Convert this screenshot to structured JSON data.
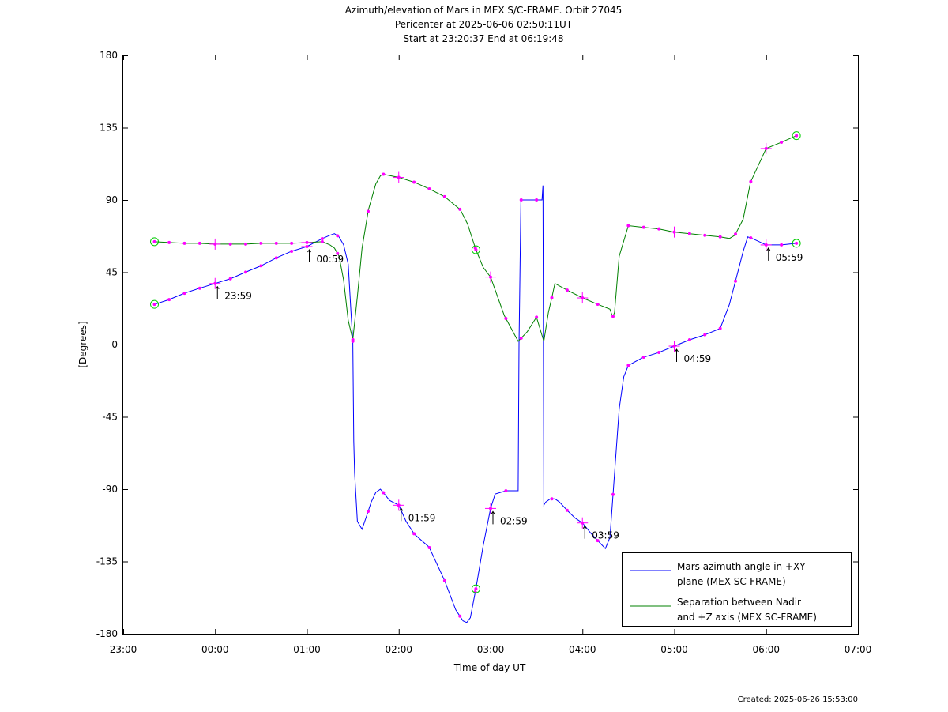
{
  "chart_data": {
    "type": "line",
    "title_lines": [
      "Azimuth/elevation of Mars in MEX S/C-FRAME.  Orbit 27045",
      "Pericenter at 2025-06-06 02:50:11UT",
      "Start at 23:20:37 End at 06:19:48"
    ],
    "xlabel": "Time of day UT",
    "ylabel": "[Degrees]",
    "xlim": [
      -1,
      7
    ],
    "ylim": [
      -180,
      180
    ],
    "xticks": [
      -1,
      0,
      1,
      2,
      3,
      4,
      5,
      6,
      7
    ],
    "xtick_labels": [
      "23:00",
      "00:00",
      "01:00",
      "02:00",
      "03:00",
      "04:00",
      "05:00",
      "06:00",
      "07:00"
    ],
    "yticks": [
      -180,
      -135,
      -90,
      -45,
      0,
      45,
      90,
      135,
      180
    ],
    "ytick_labels": [
      "-180",
      "-135",
      "-90",
      "-45",
      "0",
      "45",
      "90",
      "135",
      "180"
    ],
    "legend_position": "bottom-right",
    "marker_color": "#ff00ff",
    "start_end_marker_color": "#00cc00",
    "series": [
      {
        "name": "Mars azimuth angle in +XY plane (MEX SC-FRAME)",
        "legend_lines": [
          "Mars azimuth angle in +XY",
          "plane (MEX SC-FRAME)"
        ],
        "color": "#0000ff",
        "x": [
          -0.66,
          -0.5,
          -0.33,
          -0.17,
          0.0,
          0.17,
          0.33,
          0.5,
          0.67,
          0.83,
          1.0,
          1.1,
          1.17,
          1.25,
          1.3,
          1.35,
          1.4,
          1.45,
          1.48,
          1.5,
          1.51,
          1.52,
          1.55,
          1.6,
          1.66,
          1.7,
          1.75,
          1.8,
          1.83,
          1.9,
          2.0,
          2.08,
          2.17,
          2.33,
          2.5,
          2.62,
          2.7,
          2.74,
          2.78,
          2.84,
          2.92,
          3.0,
          3.05,
          3.17,
          3.3,
          3.31,
          3.33,
          3.5,
          3.56,
          3.57,
          3.58,
          3.6,
          3.65,
          3.7,
          3.75,
          3.83,
          3.92,
          4.0,
          4.1,
          4.25,
          4.3,
          4.4,
          4.45,
          4.5,
          4.66,
          4.83,
          5.0,
          5.17,
          5.33,
          5.5,
          5.6,
          5.66,
          5.75,
          5.8,
          5.85,
          6.0,
          6.17,
          6.33
        ],
        "y": [
          25.0,
          28.0,
          32.0,
          35.0,
          38.0,
          41.0,
          45.0,
          49.0,
          54.0,
          58.0,
          61.0,
          64.0,
          66.0,
          68.0,
          69.0,
          67.0,
          62.0,
          50.0,
          20.0,
          2.0,
          -60.0,
          -80.0,
          -110.0,
          -115.0,
          -105.0,
          -98.0,
          -92.0,
          -90.0,
          -92.0,
          -97.0,
          -100.0,
          -110.0,
          -118.0,
          -126.0,
          -147.0,
          -165.0,
          -172.0,
          -173.0,
          -170.0,
          -152.0,
          -125.0,
          -102.0,
          -93.0,
          -91.0,
          -91.0,
          0.0,
          90.0,
          90.0,
          90.0,
          99.0,
          -100.0,
          -98.0,
          -96.0,
          -96.0,
          -98.0,
          -103.0,
          -108.0,
          -111.0,
          -118.0,
          -127.0,
          -120.0,
          -40.0,
          -20.0,
          -13.0,
          -8.0,
          -5.0,
          -1.0,
          3.0,
          6.0,
          10.0,
          25.0,
          38.0,
          58.0,
          67.0,
          66.0,
          62.0,
          62.0,
          63.0
        ]
      },
      {
        "name": "Separation between Nadir and +Z axis (MEX SC-FRAME)",
        "legend_lines": [
          "Separation between Nadir",
          "and +Z axis (MEX SC-FRAME)"
        ],
        "color": "#008000",
        "x": [
          -0.66,
          -0.5,
          -0.33,
          -0.17,
          0.0,
          0.17,
          0.33,
          0.5,
          0.67,
          0.83,
          1.0,
          1.17,
          1.25,
          1.3,
          1.35,
          1.4,
          1.45,
          1.5,
          1.55,
          1.6,
          1.67,
          1.75,
          1.8,
          1.83,
          2.0,
          2.17,
          2.33,
          2.5,
          2.67,
          2.75,
          2.84,
          2.92,
          3.0,
          3.15,
          3.3,
          3.4,
          3.5,
          3.58,
          3.63,
          3.67,
          3.7,
          3.83,
          4.0,
          4.17,
          4.3,
          4.33,
          4.35,
          4.4,
          4.5,
          4.66,
          4.83,
          5.0,
          5.17,
          5.33,
          5.5,
          5.6,
          5.66,
          5.75,
          5.83,
          6.0,
          6.17,
          6.33
        ],
        "y": [
          64.0,
          63.5,
          63.0,
          63.0,
          62.5,
          62.5,
          62.5,
          63.0,
          63.0,
          63.0,
          63.5,
          64.0,
          62.0,
          60.0,
          55.0,
          40.0,
          15.0,
          3.0,
          30.0,
          60.0,
          84.0,
          100.0,
          105.0,
          106.0,
          104.0,
          101.0,
          97.0,
          92.0,
          84.0,
          75.0,
          59.0,
          48.0,
          42.0,
          18.0,
          2.0,
          8.0,
          17.0,
          2.0,
          20.0,
          30.0,
          38.0,
          34.0,
          29.0,
          25.0,
          22.0,
          17.0,
          20.0,
          55.0,
          74.0,
          73.0,
          72.0,
          70.0,
          69.0,
          68.0,
          67.0,
          66.0,
          68.0,
          78.0,
          101.0,
          122.0,
          126.0,
          130.0
        ]
      }
    ],
    "hour_markers": [
      {
        "label": "23:59",
        "x": 0.0,
        "y": 38.0
      },
      {
        "label": "00:59",
        "x": 1.0,
        "y": 61.0
      },
      {
        "label": "01:59",
        "x": 2.0,
        "y": -100.0
      },
      {
        "label": "02:59",
        "x": 3.0,
        "y": -102.0
      },
      {
        "label": "03:59",
        "x": 4.0,
        "y": -111.0
      },
      {
        "label": "04:59",
        "x": 5.0,
        "y": -1.0
      },
      {
        "label": "05:59",
        "x": 6.0,
        "y": 62.0
      }
    ],
    "hour_marker_extra_points": [
      {
        "x": 0.0,
        "y": 62.5
      },
      {
        "x": 1.0,
        "y": 63.5
      },
      {
        "x": 2.0,
        "y": 104.0
      },
      {
        "x": 3.0,
        "y": 42.0
      },
      {
        "x": 4.0,
        "y": 29.0
      },
      {
        "x": 5.0,
        "y": 70.0
      },
      {
        "x": 6.0,
        "y": 122.0
      }
    ],
    "start_end_points": [
      {
        "x": -0.66,
        "y": 25.0
      },
      {
        "x": -0.66,
        "y": 64.0
      },
      {
        "x": 6.33,
        "y": 63.0
      },
      {
        "x": 6.33,
        "y": 130.0
      },
      {
        "x": 2.84,
        "y": -152.0
      },
      {
        "x": 2.84,
        "y": 59.0
      }
    ]
  },
  "footer": {
    "created": "Created: 2025-06-26 15:53:00"
  }
}
